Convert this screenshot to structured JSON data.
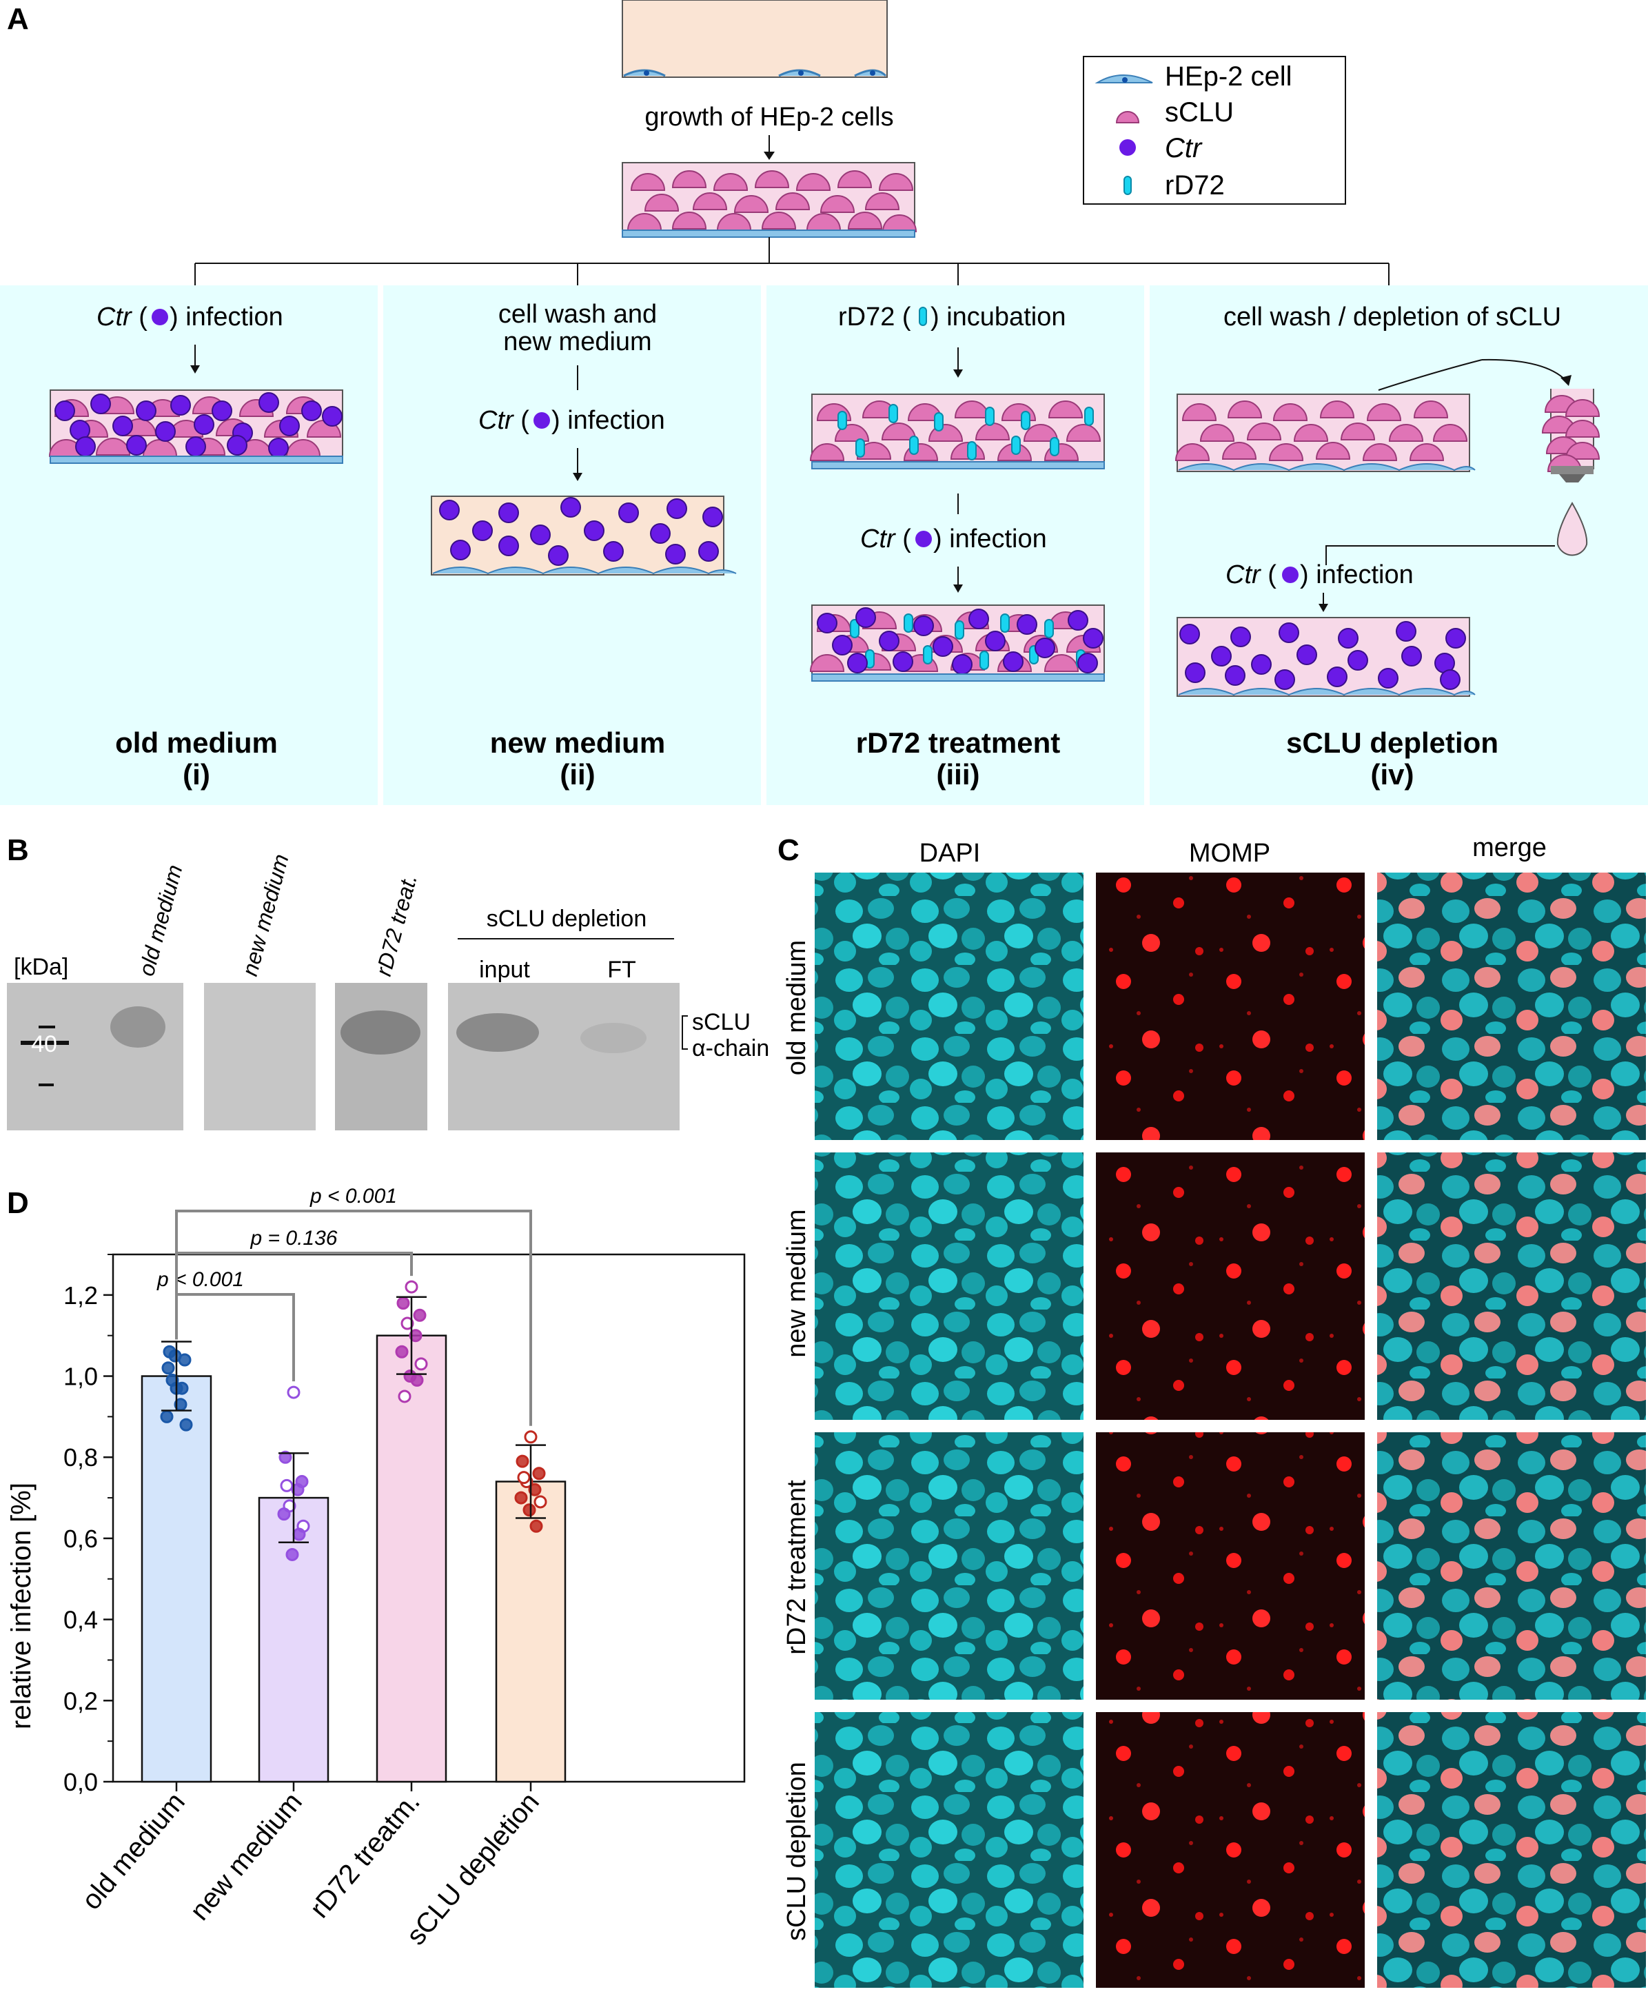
{
  "panels": {
    "A": "A",
    "B": "B",
    "C": "C",
    "D": "D"
  },
  "colors": {
    "panel_bg": "#e6ffff",
    "dish_top": "#fae4d4",
    "dish_medium": "#f7d9e8",
    "hep2": "#8cc5e9",
    "sclu": "#e074b6",
    "ctr": "#6a1ae6",
    "rd72": "#19d4f0",
    "bar_old": "#d4e5fb",
    "bar_new": "#e6d8fa",
    "bar_rd72": "#f7d5e8",
    "bar_sclu": "#fce5d3",
    "pt_old": "#1a58a8",
    "pt_new": "#9450e0",
    "pt_rd72": "#b03ab0",
    "pt_sclu": "#c02a20"
  },
  "panelA": {
    "growth_label": "growth of HEp-2 cells",
    "legend": {
      "hep2": "HEp-2 cell",
      "sclu": "sCLU",
      "ctr": "Ctr",
      "rd72": "rD72"
    },
    "branch1": {
      "ctr": "Ctr",
      "rest": ") infection",
      "open": " ("
    },
    "branch2": {
      "line1": "cell wash and",
      "line2": "new medium",
      "ctr": "Ctr",
      "rest": ") infection",
      "open": " ("
    },
    "branch3": {
      "pre": "rD72 (",
      "rest": ") incubation",
      "ctr": "Ctr",
      "rest2": ") infection",
      "open": " ("
    },
    "branch4": {
      "top": "cell wash / depletion of sCLU",
      "ctr": "Ctr",
      "rest": ") infection",
      "open": " ("
    },
    "titles": [
      {
        "name": "old medium",
        "num": "(i)"
      },
      {
        "name": "new medium",
        "num": "(ii)"
      },
      {
        "name": "rD72 treatment",
        "num": "(iii)"
      },
      {
        "name": "sCLU depletion",
        "num": "(iv)"
      }
    ]
  },
  "panelB": {
    "kda": "[kDa]",
    "marker": "40",
    "lanes": [
      "old medium",
      "new medium",
      "rD72 treat."
    ],
    "group": "sCLU depletion",
    "sub": [
      "input",
      "FT"
    ],
    "band1": "sCLU",
    "band2": "α-chain"
  },
  "panelC": {
    "columns": [
      "DAPI",
      "MOMP",
      "merge"
    ],
    "rows": [
      "old medium",
      "new medium",
      "rD72 treatment",
      "sCLU depletion"
    ]
  },
  "chart_data": {
    "type": "bar",
    "categories": [
      "old medium",
      "new medium",
      "rD72 treatm.",
      "sCLU depletion"
    ],
    "values": [
      1.0,
      0.7,
      1.1,
      0.74
    ],
    "errors": [
      0.085,
      0.11,
      0.095,
      0.09
    ],
    "points": [
      [
        0.97,
        1.02,
        1.04,
        0.99,
        0.93,
        0.9,
        0.88,
        1.05,
        0.97,
        1.06
      ],
      [
        0.96,
        0.8,
        0.74,
        0.68,
        0.72,
        0.66,
        0.63,
        0.56,
        0.61,
        0.73
      ],
      [
        1.22,
        1.18,
        1.15,
        1.13,
        1.1,
        1.06,
        1.03,
        1.0,
        0.99,
        0.95
      ],
      [
        0.85,
        0.79,
        0.76,
        0.74,
        0.72,
        0.7,
        0.69,
        0.67,
        0.63,
        0.75
      ]
    ],
    "ylabel": "relative infection [%]",
    "ylim": [
      0,
      1.3
    ],
    "yticks": [
      "0,0",
      "0,2",
      "0,4",
      "0,6",
      "0,8",
      "1,0",
      "1,2"
    ],
    "yticks_values": [
      0,
      0.2,
      0.4,
      0.6,
      0.8,
      1.0,
      1.2
    ],
    "comparisons": [
      {
        "label": "p < 0.001",
        "from": 0,
        "to": 1
      },
      {
        "label": "p = 0.136",
        "from": 0,
        "to": 2
      },
      {
        "label": "p < 0.001",
        "from": 0,
        "to": 3
      }
    ]
  }
}
